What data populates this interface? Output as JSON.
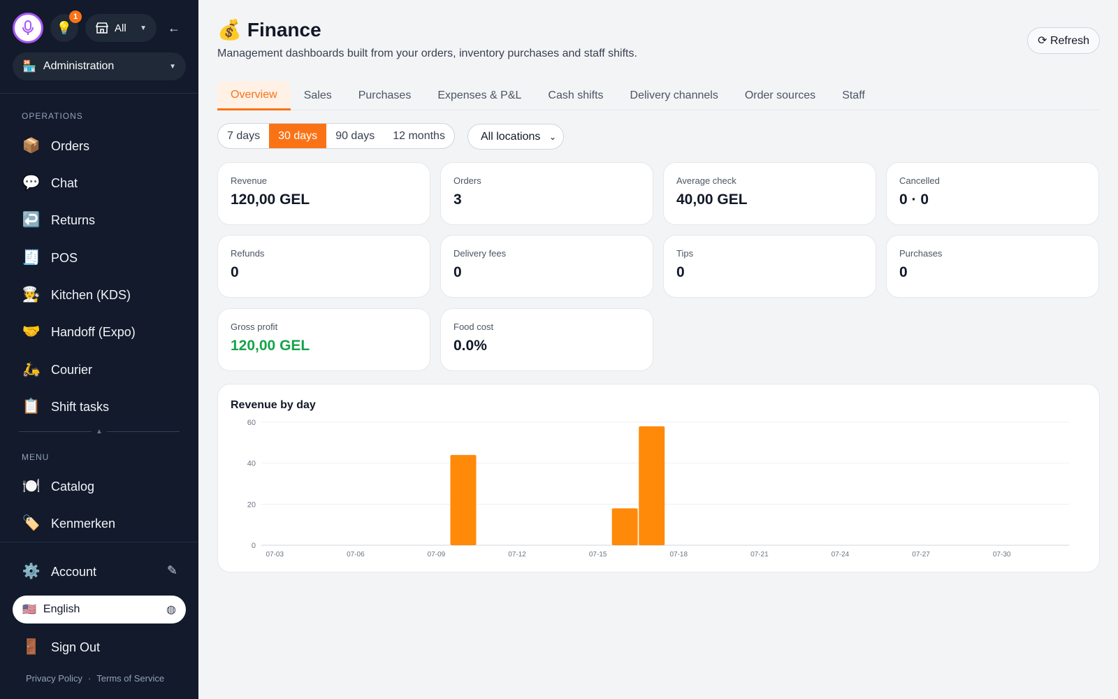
{
  "sidebar": {
    "notification_count": "1",
    "store_filter": "All",
    "role": "Administration",
    "operations_label": "OPERATIONS",
    "operations": [
      {
        "icon": "📦",
        "label": "Orders"
      },
      {
        "icon": "💬",
        "label": "Chat"
      },
      {
        "icon": "↩️",
        "label": "Returns"
      },
      {
        "icon": "🧾",
        "label": "POS"
      },
      {
        "icon": "🧑‍🍳",
        "label": "Kitchen (KDS)"
      },
      {
        "icon": "🤝",
        "label": "Handoff (Expo)"
      },
      {
        "icon": "🛵",
        "label": "Courier"
      },
      {
        "icon": "📋",
        "label": "Shift tasks"
      }
    ],
    "menu_label": "MENU",
    "menu": [
      {
        "icon": "🍽️",
        "label": "Catalog"
      },
      {
        "icon": "🏷️",
        "label": "Kenmerken"
      }
    ],
    "account": {
      "icon": "⚙️",
      "label": "Account"
    },
    "language": {
      "flag": "🇺🇸",
      "label": "English"
    },
    "sign_out": {
      "icon": "🚪",
      "label": "Sign Out"
    },
    "footer": {
      "privacy": "Privacy Policy",
      "separator": "·",
      "terms": "Terms of Service"
    }
  },
  "header": {
    "title_icon": "💰",
    "title": "Finance",
    "subtitle": "Management dashboards built from your orders, inventory purchases and staff shifts.",
    "refresh_label": "⟳ Refresh"
  },
  "tabs": [
    "Overview",
    "Sales",
    "Purchases",
    "Expenses & P&L",
    "Cash shifts",
    "Delivery channels",
    "Order sources",
    "Staff"
  ],
  "active_tab": "Overview",
  "ranges": [
    "7 days",
    "30 days",
    "90 days",
    "12 months"
  ],
  "active_range": "30 days",
  "location_filter": "All locations",
  "stats": [
    {
      "label": "Revenue",
      "value": "120,00 GEL"
    },
    {
      "label": "Orders",
      "value": "3"
    },
    {
      "label": "Average check",
      "value": "40,00 GEL"
    },
    {
      "label": "Cancelled",
      "value": "0 · 0"
    },
    {
      "label": "Refunds",
      "value": "0"
    },
    {
      "label": "Delivery fees",
      "value": "0"
    },
    {
      "label": "Tips",
      "value": "0"
    },
    {
      "label": "Purchases",
      "value": "0"
    },
    {
      "label": "Gross profit",
      "value": "120,00 GEL",
      "highlight": "#16a34a"
    },
    {
      "label": "Food cost",
      "value": "0.0%"
    }
  ],
  "colors": {
    "accent": "#f97316",
    "bar": "#ff8a0a",
    "sidebar_bg": "#121a2b",
    "positive": "#16a34a"
  },
  "chart_data": {
    "type": "bar",
    "title": "Revenue by day",
    "x_tick_labels": [
      "07-03",
      "07-06",
      "07-09",
      "07-12",
      "07-15",
      "07-18",
      "07-21",
      "07-24",
      "07-27",
      "07-30"
    ],
    "y_ticks": [
      0,
      20,
      40,
      60
    ],
    "ylim": [
      0,
      60
    ],
    "categories": [
      "07-03",
      "07-04",
      "07-05",
      "07-06",
      "07-07",
      "07-08",
      "07-09",
      "07-10",
      "07-11",
      "07-12",
      "07-13",
      "07-14",
      "07-15",
      "07-16",
      "07-17",
      "07-18",
      "07-19",
      "07-20",
      "07-21",
      "07-22",
      "07-23",
      "07-24",
      "07-25",
      "07-26",
      "07-27",
      "07-28",
      "07-29",
      "07-30",
      "07-31",
      "08-01"
    ],
    "values": [
      0,
      0,
      0,
      0,
      0,
      0,
      0,
      44,
      0,
      0,
      0,
      0,
      0,
      18,
      58,
      0,
      0,
      0,
      0,
      0,
      0,
      0,
      0,
      0,
      0,
      0,
      0,
      0,
      0,
      0
    ],
    "grid": true,
    "legend": "none"
  }
}
